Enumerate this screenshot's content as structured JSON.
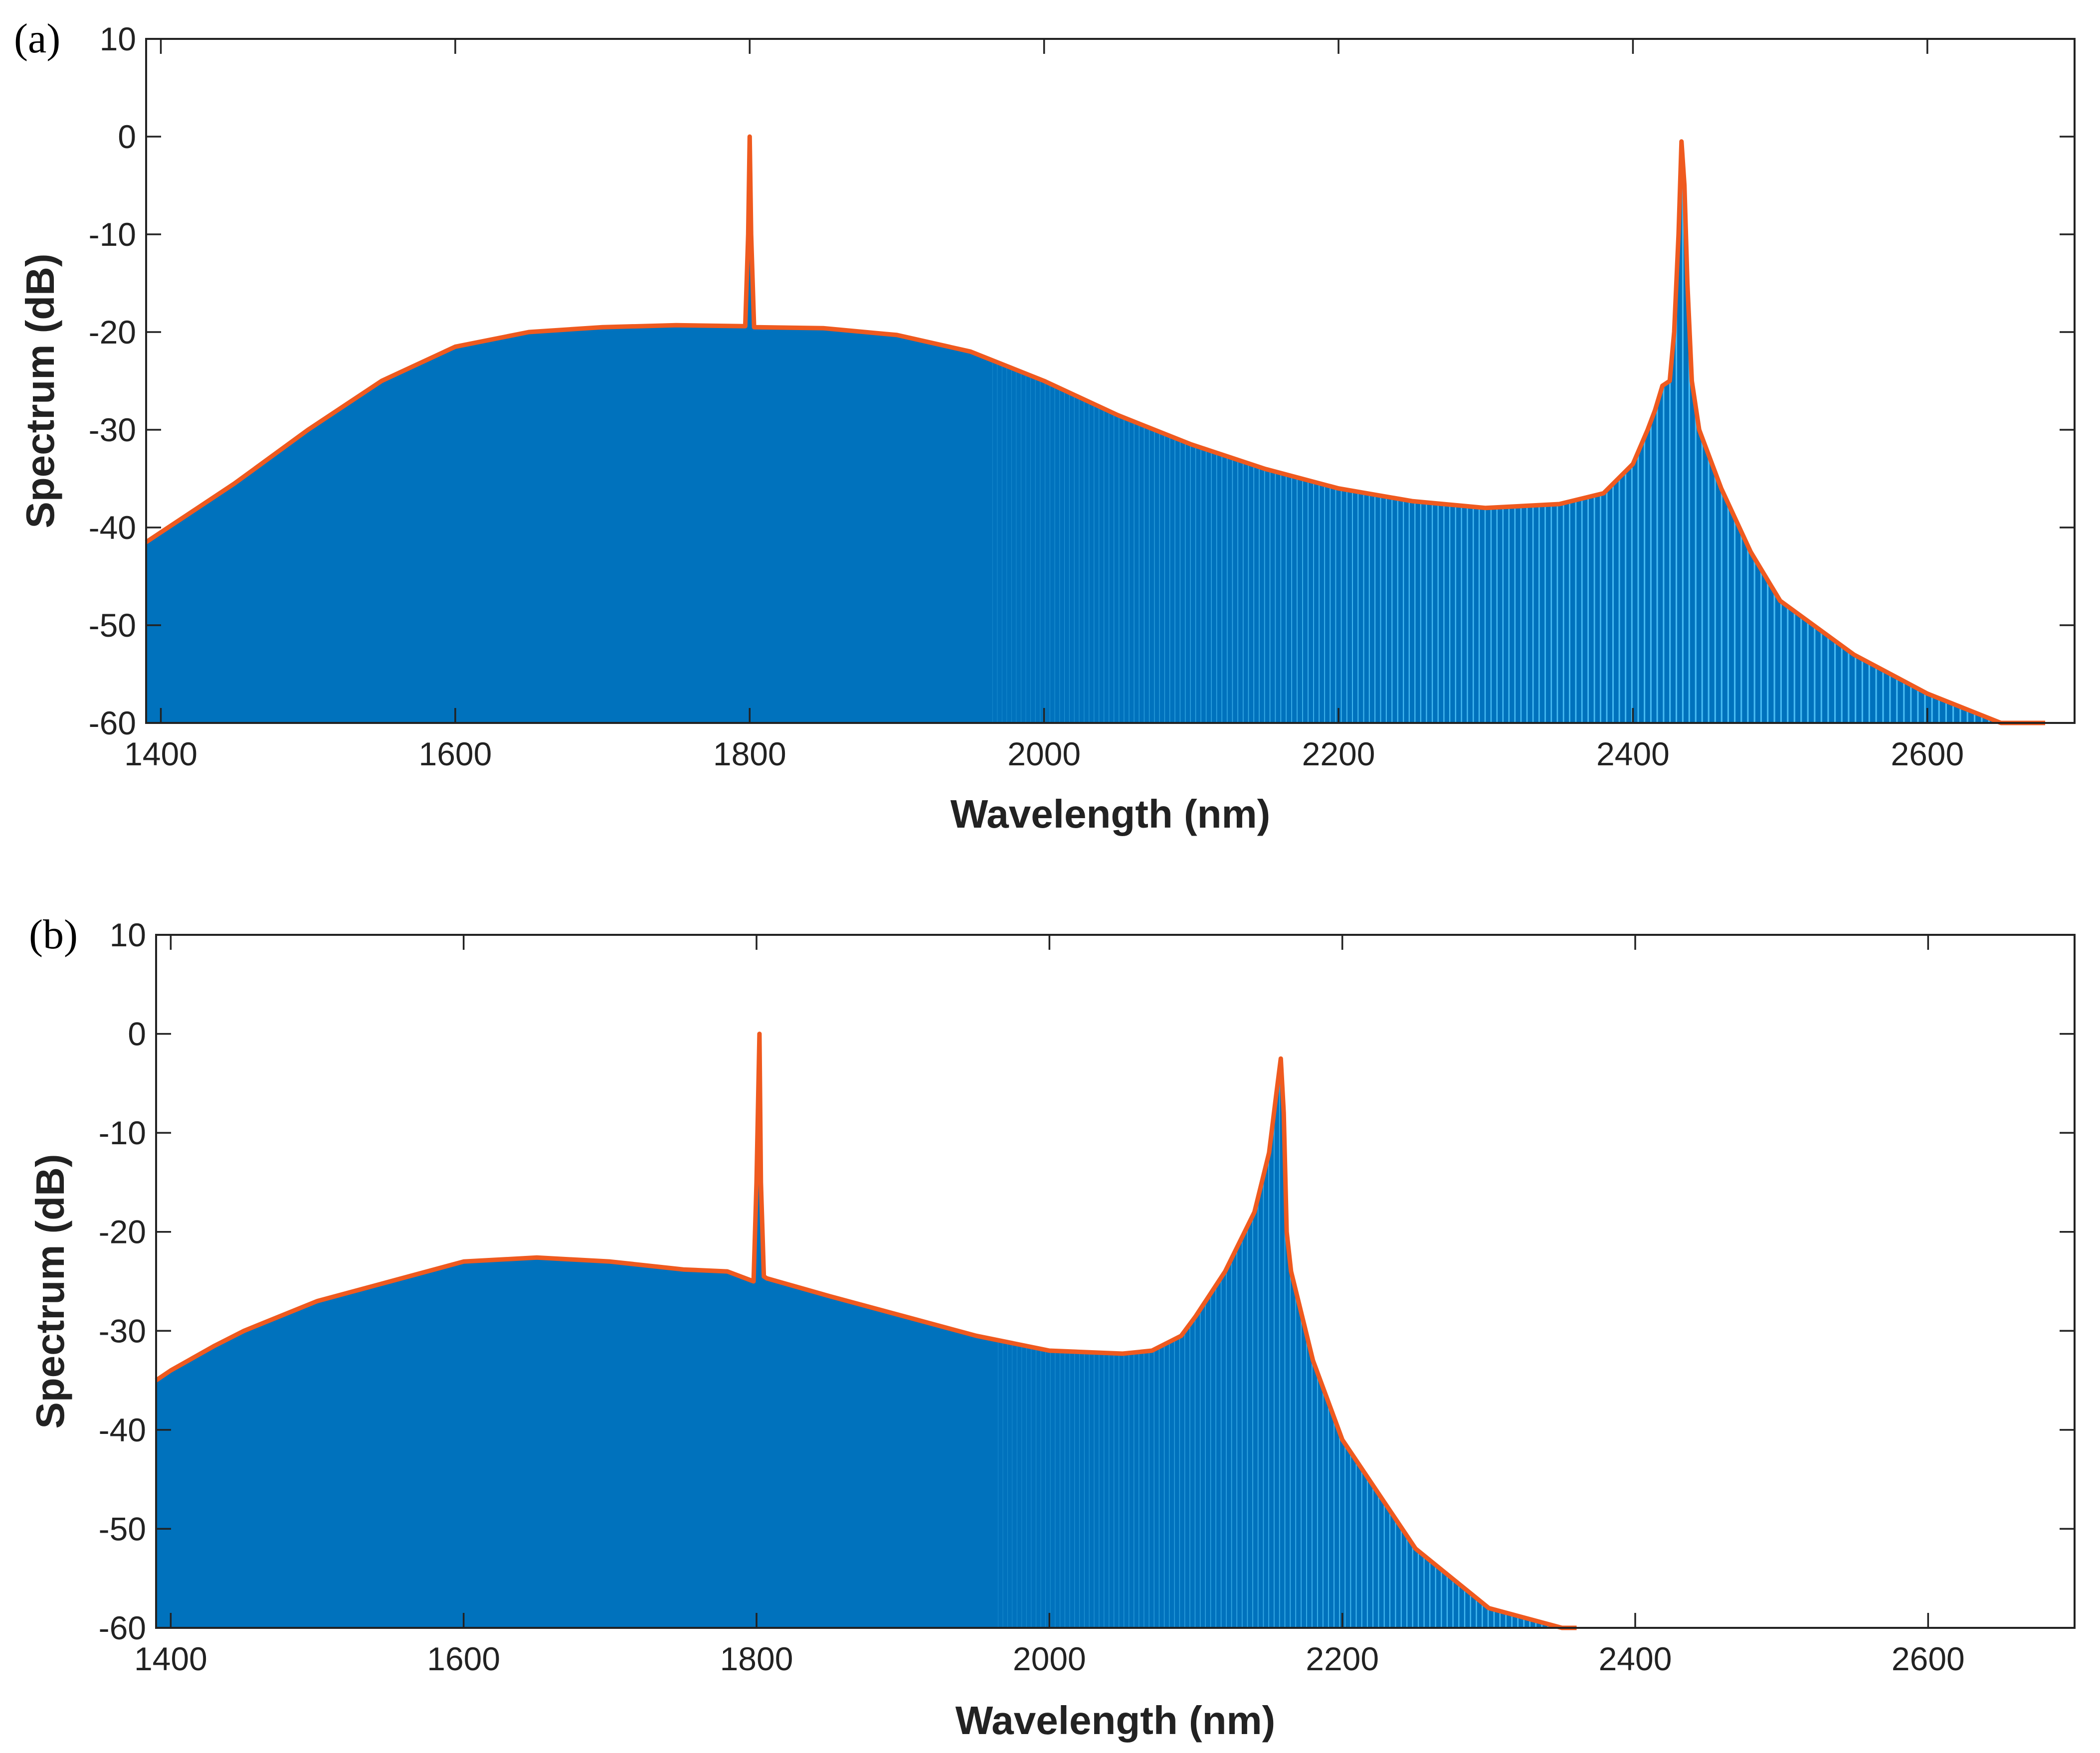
{
  "chart_data": [
    {
      "type": "area",
      "panel_label": "(a)",
      "xlabel": "Wavelength (nm)",
      "ylabel": "Spectrum (dB)",
      "xlim": [
        1390,
        2700
      ],
      "ylim": [
        -60,
        10
      ],
      "xticks": [
        1400,
        1600,
        1800,
        2000,
        2200,
        2400,
        2600
      ],
      "yticks": [
        10,
        0,
        -10,
        -20,
        -30,
        -40,
        -50,
        -60
      ],
      "fill_color": "#0072bd",
      "line_color": "#ef5a1f",
      "series": [
        {
          "name": "envelope",
          "x": [
            1390,
            1400,
            1450,
            1500,
            1550,
            1600,
            1650,
            1700,
            1750,
            1797,
            1799,
            1800,
            1801,
            1803,
            1850,
            1900,
            1950,
            2000,
            2050,
            2100,
            2150,
            2200,
            2250,
            2300,
            2350,
            2380,
            2400,
            2410,
            2415,
            2420,
            2425,
            2428,
            2431,
            2433,
            2435,
            2437,
            2440,
            2445,
            2450,
            2460,
            2480,
            2500,
            2550,
            2600,
            2650,
            2680
          ],
          "y": [
            -41.5,
            -40.5,
            -35.5,
            -30,
            -25,
            -21.5,
            -20,
            -19.5,
            -19.3,
            -19.4,
            -10,
            0,
            -10,
            -19.5,
            -19.6,
            -20.3,
            -22,
            -25,
            -28.5,
            -31.5,
            -34,
            -36,
            -37.3,
            -38,
            -37.6,
            -36.5,
            -33.5,
            -30,
            -28,
            -25.5,
            -25,
            -20,
            -10,
            -0.5,
            -5,
            -15,
            -25,
            -30,
            -32,
            -36,
            -42.5,
            -47.5,
            -53,
            -57,
            -60,
            -60
          ]
        }
      ]
    },
    {
      "type": "area",
      "panel_label": "(b)",
      "xlabel": "Wavelength (nm)",
      "ylabel": "Spectrum (dB)",
      "xlim": [
        1390,
        2700
      ],
      "ylim": [
        -60,
        10
      ],
      "xticks": [
        1400,
        1600,
        1800,
        2000,
        2200,
        2400,
        2600
      ],
      "yticks": [
        10,
        0,
        -10,
        -20,
        -30,
        -40,
        -50,
        -60
      ],
      "fill_color": "#0072bd",
      "line_color": "#ef5a1f",
      "series": [
        {
          "name": "envelope",
          "x": [
            1390,
            1400,
            1430,
            1450,
            1500,
            1550,
            1600,
            1650,
            1700,
            1750,
            1780,
            1798,
            1800,
            1802,
            1803,
            1805,
            1807,
            1850,
            1900,
            1950,
            2000,
            2050,
            2070,
            2090,
            2100,
            2120,
            2140,
            2150,
            2155,
            2158,
            2160,
            2162,
            2165,
            2170,
            2180,
            2200,
            2250,
            2300,
            2350,
            2360
          ],
          "y": [
            -35,
            -34,
            -31.5,
            -30,
            -27,
            -25,
            -23,
            -22.6,
            -23,
            -23.8,
            -24,
            -25,
            -15,
            0,
            -15,
            -24.5,
            -24.7,
            -26.5,
            -28.5,
            -30.5,
            -32,
            -32.3,
            -32,
            -30.5,
            -28.5,
            -24,
            -18,
            -12,
            -6,
            -2.5,
            -8,
            -20,
            -24,
            -27,
            -33,
            -41,
            -52,
            -58,
            -60,
            -60
          ]
        }
      ]
    }
  ]
}
